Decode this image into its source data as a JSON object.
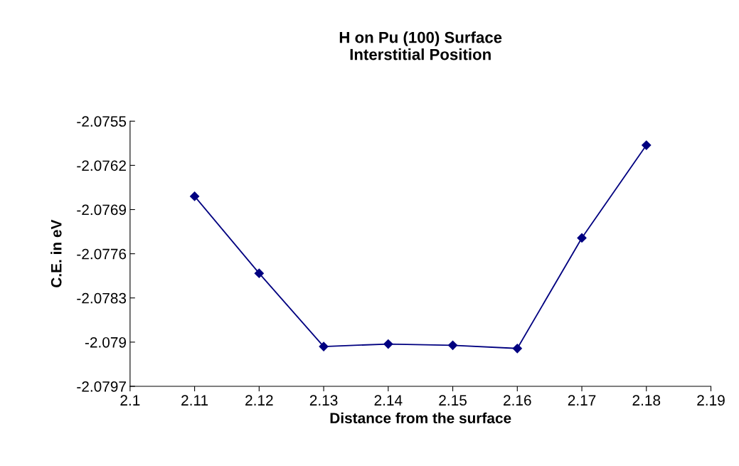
{
  "chart_data": {
    "type": "line",
    "title": "H on Pu (100) Surface\nInterstitial Position",
    "xlabel": "Distance from the surface",
    "ylabel": "C.E. in eV",
    "x": [
      2.11,
      2.12,
      2.13,
      2.14,
      2.15,
      2.16,
      2.17,
      2.18
    ],
    "series": [
      {
        "color": "#000080",
        "values": [
          -2.07669,
          -2.07791,
          -2.07907,
          -2.07903,
          -2.07905,
          -2.0791,
          -2.07735,
          -2.07588
        ]
      }
    ],
    "xlim": [
      2.1,
      2.19
    ],
    "xticks": [
      2.1,
      2.11,
      2.12,
      2.13,
      2.14,
      2.15,
      2.16,
      2.17,
      2.18,
      2.19
    ],
    "ylim": [
      -2.0797,
      -2.0755
    ],
    "yticks": [
      -2.0797,
      -2.079,
      -2.0783,
      -2.0776,
      -2.0769,
      -2.0762,
      -2.0755
    ],
    "grid": false,
    "legend": false,
    "marker": "diamond",
    "line_style": "solid"
  }
}
